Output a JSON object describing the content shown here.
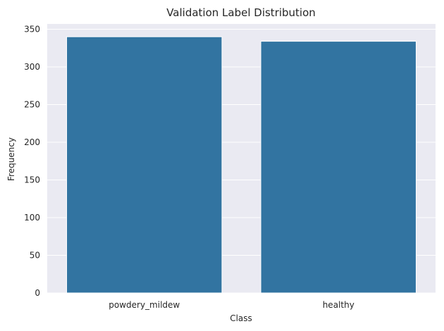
{
  "chart_data": {
    "type": "bar",
    "title": "Validation Label Distribution",
    "xlabel": "Class",
    "ylabel": "Frequency",
    "categories": [
      "powdery_mildew",
      "healthy"
    ],
    "values": [
      340,
      334
    ],
    "ylim": [
      0,
      357
    ],
    "yticks": [
      0,
      50,
      100,
      150,
      200,
      250,
      300,
      350
    ],
    "grid": true,
    "legend": "none",
    "colors": {
      "bar": "#3274a1",
      "plot_background": "#eaeaf2",
      "grid": "#ffffff",
      "text": "#262626"
    }
  }
}
